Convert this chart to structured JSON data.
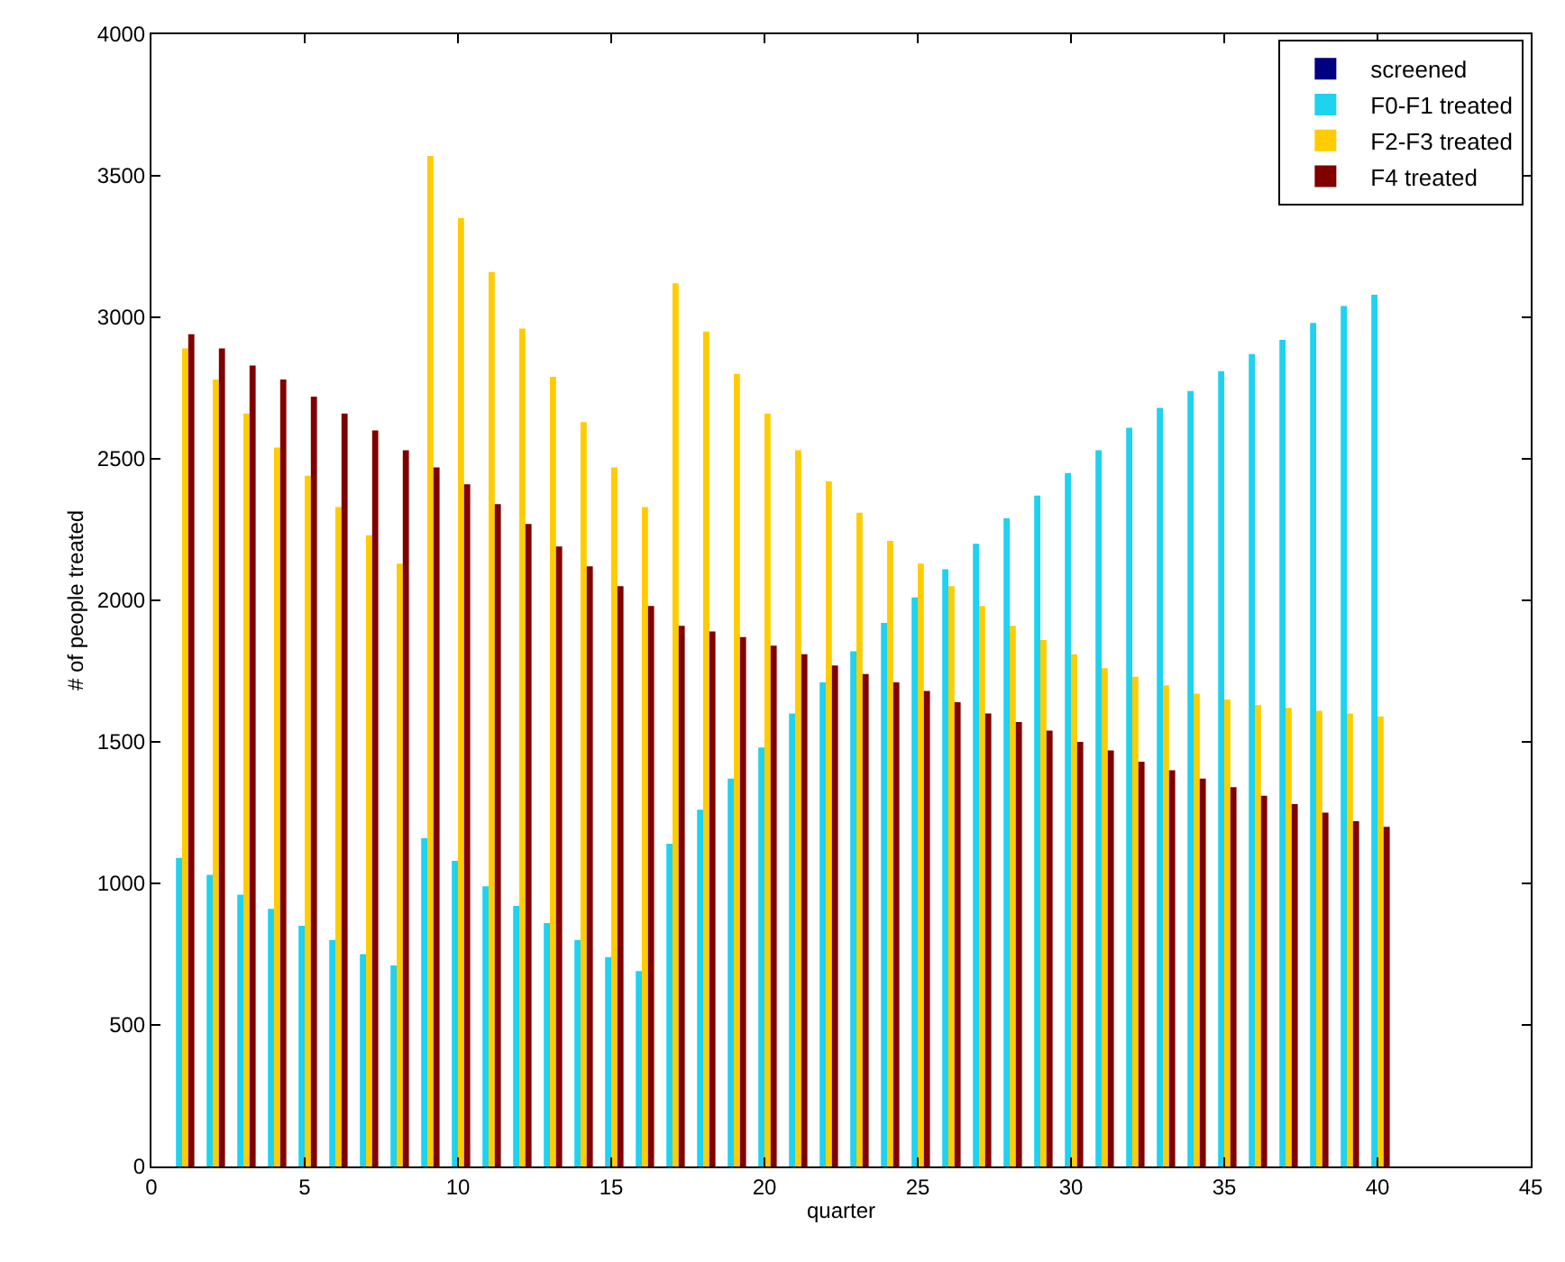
{
  "chart_data": {
    "type": "bar",
    "xlabel": "quarter",
    "ylabel": "# of people treated",
    "x": [
      1,
      2,
      3,
      4,
      5,
      6,
      7,
      8,
      9,
      10,
      11,
      12,
      13,
      14,
      15,
      16,
      17,
      18,
      19,
      20,
      21,
      22,
      23,
      24,
      25,
      26,
      27,
      28,
      29,
      30,
      31,
      32,
      33,
      34,
      35,
      36,
      37,
      38,
      39,
      40
    ],
    "series": [
      {
        "name": "screened",
        "color": "#000080",
        "values": [
          0,
          0,
          0,
          0,
          0,
          0,
          0,
          0,
          0,
          0,
          0,
          0,
          0,
          0,
          0,
          0,
          0,
          0,
          0,
          0,
          0,
          0,
          0,
          0,
          0,
          0,
          0,
          0,
          0,
          0,
          0,
          0,
          0,
          0,
          0,
          0,
          0,
          0,
          0,
          0
        ]
      },
      {
        "name": "F0-F1 treated",
        "color": "#1ed2f0",
        "values": [
          1090,
          1030,
          960,
          910,
          850,
          800,
          750,
          710,
          1160,
          1080,
          990,
          920,
          860,
          800,
          740,
          690,
          1140,
          1260,
          1370,
          1480,
          1600,
          1710,
          1820,
          1920,
          2010,
          2110,
          2200,
          2290,
          2370,
          2450,
          2530,
          2610,
          2680,
          2740,
          2810,
          2870,
          2920,
          2980,
          3040,
          3080
        ]
      },
      {
        "name": "F2-F3 treated",
        "color": "#ffcc00",
        "values": [
          2890,
          2780,
          2660,
          2540,
          2440,
          2330,
          2230,
          2130,
          3570,
          3350,
          3160,
          2960,
          2790,
          2630,
          2470,
          2330,
          3120,
          2950,
          2800,
          2660,
          2530,
          2420,
          2310,
          2210,
          2130,
          2050,
          1980,
          1910,
          1860,
          1810,
          1760,
          1730,
          1700,
          1670,
          1650,
          1630,
          1620,
          1610,
          1600,
          1590
        ]
      },
      {
        "name": "F4 treated",
        "color": "#800000",
        "values": [
          2940,
          2890,
          2830,
          2780,
          2720,
          2660,
          2600,
          2530,
          2470,
          2410,
          2340,
          2270,
          2190,
          2120,
          2050,
          1980,
          1910,
          1890,
          1870,
          1840,
          1810,
          1770,
          1740,
          1710,
          1680,
          1640,
          1600,
          1570,
          1540,
          1500,
          1470,
          1430,
          1400,
          1370,
          1340,
          1310,
          1280,
          1250,
          1220,
          1200
        ]
      }
    ],
    "xlim": [
      0,
      45
    ],
    "xticks": [
      0,
      5,
      10,
      15,
      20,
      25,
      30,
      35,
      40,
      45
    ],
    "ylim": [
      0,
      4000
    ],
    "yticks": [
      0,
      500,
      1000,
      1500,
      2000,
      2500,
      3000,
      3500,
      4000
    ],
    "legend": "top right"
  }
}
